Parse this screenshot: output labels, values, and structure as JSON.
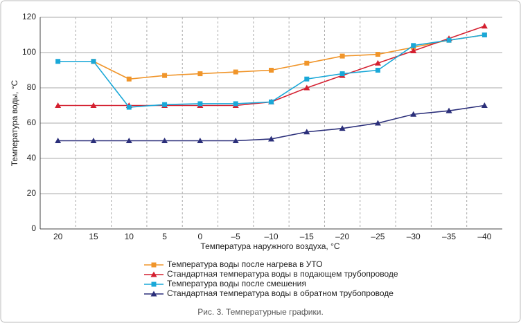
{
  "chart_data": {
    "type": "line",
    "caption": "Рис. 3. Температурные графики.",
    "xlabel": "Температура наружного воздуха, °С",
    "ylabel": "Температура воды, °С",
    "categories": [
      "20",
      "15",
      "10",
      "5",
      "0",
      "–5",
      "–10",
      "–15",
      "–20",
      "–25",
      "–30",
      "–35",
      "–40"
    ],
    "ylim": [
      0,
      120
    ],
    "yticks": [
      0,
      20,
      40,
      60,
      80,
      100,
      120
    ],
    "grid": true,
    "legend": "bottom",
    "series": [
      {
        "name": "Температура воды после нагрева в УТО",
        "color": "#f0952a",
        "marker": "square",
        "values": [
          null,
          95,
          85,
          87,
          88,
          89,
          90,
          94,
          98,
          99,
          103,
          107,
          110
        ]
      },
      {
        "name": "Стандартная температура воды в подающем трубопроводе",
        "color": "#d42030",
        "marker": "triangle",
        "values": [
          70,
          70,
          70,
          70,
          70,
          70,
          72,
          80,
          87,
          94,
          101,
          108,
          115
        ]
      },
      {
        "name": "Температура воды после смешения",
        "color": "#1aa8d8",
        "marker": "square",
        "values": [
          95,
          95,
          69,
          70.5,
          71,
          71,
          72,
          85,
          88,
          90,
          104,
          107,
          110
        ]
      },
      {
        "name": "Стандартная температура воды в обратном трубопроводе",
        "color": "#2b2f7a",
        "marker": "triangle",
        "values": [
          50,
          50,
          50,
          50,
          50,
          50,
          51,
          55,
          57,
          60,
          65,
          67,
          70
        ]
      }
    ]
  }
}
